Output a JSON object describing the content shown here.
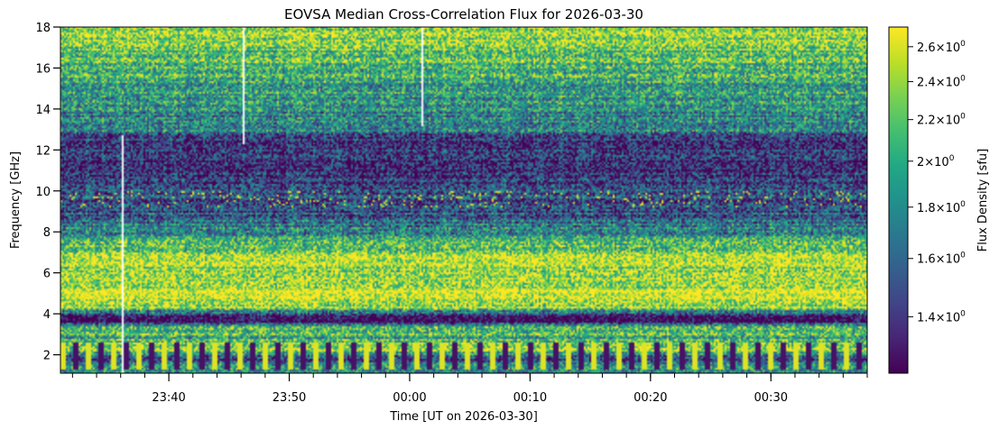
{
  "chart_data": {
    "type": "heatmap",
    "title": "EOVSA Median Cross-Correlation Flux for 2026-03-30",
    "xlabel": "Time [UT on 2026-03-30]",
    "ylabel": "Frequency [GHz]",
    "colorbar_label": "Flux Density [sfu]",
    "colormap": "viridis",
    "x_range": [
      "23:31",
      "00:38"
    ],
    "x_tick_labels": [
      "23:40",
      "23:50",
      "00:00",
      "00:10",
      "00:20",
      "00:30"
    ],
    "ylim": [
      1.1,
      18
    ],
    "y_tick_labels": [
      "2",
      "4",
      "6",
      "8",
      "10",
      "12",
      "14",
      "16",
      "18"
    ],
    "y_ticks": [
      2,
      4,
      6,
      8,
      10,
      12,
      14,
      16,
      18
    ],
    "colorbar_range": [
      1.23,
      2.72
    ],
    "colorbar_scale": "log",
    "colorbar_ticks": [
      {
        "value": 1.4,
        "base": "1.4",
        "exp": "0"
      },
      {
        "value": 1.6,
        "base": "1.6",
        "exp": "0"
      },
      {
        "value": 1.8,
        "base": "1.8",
        "exp": "0"
      },
      {
        "value": 2.0,
        "base": "2",
        "exp": "0"
      },
      {
        "value": 2.2,
        "base": "2.2",
        "exp": "0"
      },
      {
        "value": 2.4,
        "base": "2.4",
        "exp": "0"
      },
      {
        "value": 2.6,
        "base": "2.6",
        "exp": "0"
      }
    ],
    "frequency_profile_ghz": [
      {
        "f": 1.1,
        "level": 0.55
      },
      {
        "f": 1.5,
        "level": 0.5
      },
      {
        "f": 1.8,
        "level": 0.15
      },
      {
        "f": 2.3,
        "level": 0.85
      },
      {
        "f": 2.8,
        "level": 0.6
      },
      {
        "f": 3.3,
        "level": 0.75
      },
      {
        "f": 3.6,
        "level": 0.05
      },
      {
        "f": 3.9,
        "level": 0.1
      },
      {
        "f": 4.3,
        "level": 0.85
      },
      {
        "f": 5.0,
        "level": 0.95
      },
      {
        "f": 6.0,
        "level": 0.85
      },
      {
        "f": 6.8,
        "level": 0.9
      },
      {
        "f": 7.5,
        "level": 0.6
      },
      {
        "f": 8.5,
        "level": 0.35
      },
      {
        "f": 9.3,
        "level": 0.2
      },
      {
        "f": 10.0,
        "level": 0.25
      },
      {
        "f": 11.0,
        "level": 0.12
      },
      {
        "f": 12.5,
        "level": 0.2
      },
      {
        "f": 13.0,
        "level": 0.45
      },
      {
        "f": 14.5,
        "level": 0.5
      },
      {
        "f": 16.0,
        "level": 0.65
      },
      {
        "f": 17.5,
        "level": 0.8
      },
      {
        "f": 18.0,
        "level": 0.8
      }
    ]
  }
}
